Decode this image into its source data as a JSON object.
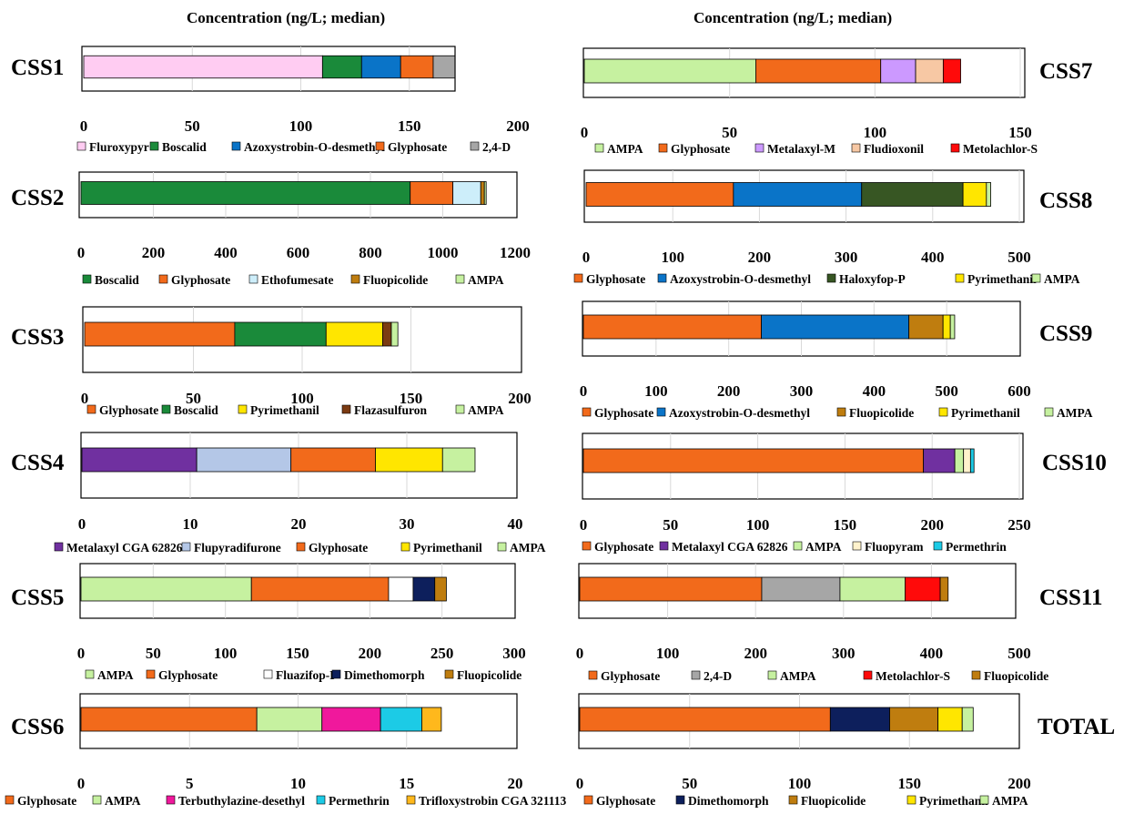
{
  "headers": {
    "left": "Concentration (ng/L; median)",
    "right": "Concentration (ng/L; median)"
  },
  "chart_data": [
    {
      "type": "bar",
      "orientation": "horizontal",
      "stacked": true,
      "title": "CSS1",
      "xlim": [
        0,
        200
      ],
      "ticks": [
        0,
        50,
        100,
        150,
        200
      ],
      "grid": true,
      "legend": "bottom",
      "series": [
        {
          "name": "Fluroxypyr",
          "value": 110,
          "color": "#ffccf2"
        },
        {
          "name": "Boscalid",
          "value": 18,
          "color": "#1a8a3a"
        },
        {
          "name": "Azoxystrobin-O-desmethyl",
          "value": 18,
          "color": "#0a74c8"
        },
        {
          "name": "Glyphosate",
          "value": 15,
          "color": "#f26a1b"
        },
        {
          "name": "2,4-D",
          "value": 10,
          "color": "#a6a6a6"
        }
      ]
    },
    {
      "type": "bar",
      "orientation": "horizontal",
      "stacked": true,
      "title": "CSS2",
      "xlim": [
        0,
        1200
      ],
      "ticks": [
        0,
        200,
        400,
        600,
        800,
        1000,
        1200
      ],
      "grid": true,
      "legend": "bottom",
      "series": [
        {
          "name": "Boscalid",
          "value": 910,
          "color": "#1a8a3a"
        },
        {
          "name": "Glyphosate",
          "value": 118,
          "color": "#f26a1b"
        },
        {
          "name": "Ethofumesate",
          "value": 77,
          "color": "#cdeefa"
        },
        {
          "name": "Fluopicolide",
          "value": 10,
          "color": "#bf7d0f"
        },
        {
          "name": "AMPA",
          "value": 5,
          "color": "#c6f1a0"
        }
      ]
    },
    {
      "type": "bar",
      "orientation": "horizontal",
      "stacked": true,
      "title": "CSS3",
      "xlim": [
        0,
        200
      ],
      "ticks": [
        0,
        50,
        100,
        150,
        200
      ],
      "grid": true,
      "legend": "bottom",
      "series": [
        {
          "name": "Glyphosate",
          "value": 69,
          "color": "#f26a1b"
        },
        {
          "name": "Boscalid",
          "value": 42,
          "color": "#1a8a3a"
        },
        {
          "name": "Pyrimethanil",
          "value": 26,
          "color": "#ffe600"
        },
        {
          "name": "Flazasulfuron",
          "value": 4,
          "color": "#7b3b12"
        },
        {
          "name": "AMPA",
          "value": 3,
          "color": "#c6f1a0"
        }
      ]
    },
    {
      "type": "bar",
      "orientation": "horizontal",
      "stacked": true,
      "title": "CSS4",
      "xlim": [
        0,
        40
      ],
      "ticks": [
        0,
        10,
        20,
        30,
        40
      ],
      "grid": true,
      "legend": "bottom",
      "series": [
        {
          "name": "Metalaxyl CGA 62826",
          "value": 10.6,
          "color": "#7030a0"
        },
        {
          "name": "Flupyradifurone",
          "value": 8.7,
          "color": "#b4c7e7"
        },
        {
          "name": "Glyphosate",
          "value": 7.8,
          "color": "#f26a1b"
        },
        {
          "name": "Pyrimethanil",
          "value": 6.2,
          "color": "#ffe600"
        },
        {
          "name": "AMPA",
          "value": 3.0,
          "color": "#c6f1a0"
        }
      ]
    },
    {
      "type": "bar",
      "orientation": "horizontal",
      "stacked": true,
      "title": "CSS5",
      "xlim": [
        0,
        300
      ],
      "ticks": [
        0,
        50,
        100,
        150,
        200,
        250,
        300
      ],
      "grid": true,
      "legend": "bottom",
      "series": [
        {
          "name": "AMPA",
          "value": 118,
          "color": "#c6f1a0"
        },
        {
          "name": "Glyphosate",
          "value": 95,
          "color": "#f26a1b"
        },
        {
          "name": "Fluazifop-P",
          "value": 17,
          "color": "#ffffff"
        },
        {
          "name": "Dimethomorph",
          "value": 15,
          "color": "#0d1f5c"
        },
        {
          "name": "Fluopicolide",
          "value": 8,
          "color": "#bf7d0f"
        }
      ]
    },
    {
      "type": "bar",
      "orientation": "horizontal",
      "stacked": true,
      "title": "CSS6",
      "xlim": [
        0,
        20
      ],
      "ticks": [
        0,
        5,
        10,
        15,
        20
      ],
      "grid": true,
      "legend": "bottom",
      "series": [
        {
          "name": "Glyphosate",
          "value": 8.1,
          "color": "#f26a1b"
        },
        {
          "name": "AMPA",
          "value": 3.0,
          "color": "#c6f1a0"
        },
        {
          "name": "Terbuthylazine-desethyl",
          "value": 2.7,
          "color": "#f0189c"
        },
        {
          "name": "Permethrin",
          "value": 1.9,
          "color": "#1ccbe6"
        },
        {
          "name": "Trifloxystrobin CGA 321113",
          "value": 0.9,
          "color": "#ffb81c"
        }
      ]
    },
    {
      "type": "bar",
      "orientation": "horizontal",
      "stacked": true,
      "title": "CSS7",
      "xlim": [
        0,
        150
      ],
      "ticks": [
        0,
        50,
        100,
        150
      ],
      "grid": true,
      "legend": "bottom",
      "series": [
        {
          "name": "AMPA",
          "value": 59,
          "color": "#c6f1a0"
        },
        {
          "name": "Glyphosate",
          "value": 43,
          "color": "#f26a1b"
        },
        {
          "name": "Metalaxyl-M",
          "value": 12,
          "color": "#cc99ff"
        },
        {
          "name": "Fludioxonil",
          "value": 9.5,
          "color": "#f7c8a4"
        },
        {
          "name": "Metolachlor-S",
          "value": 6,
          "color": "#ff0a0a"
        }
      ]
    },
    {
      "type": "bar",
      "orientation": "horizontal",
      "stacked": true,
      "title": "CSS8",
      "xlim": [
        0,
        500
      ],
      "ticks": [
        0,
        100,
        200,
        300,
        400,
        500
      ],
      "grid": true,
      "legend": "bottom",
      "series": [
        {
          "name": "Glyphosate",
          "value": 170,
          "color": "#f26a1b"
        },
        {
          "name": "Azoxystrobin-O-desmethyl",
          "value": 148,
          "color": "#0a74c8"
        },
        {
          "name": "Haloxyfop-P",
          "value": 117,
          "color": "#375623"
        },
        {
          "name": "Pyrimethanil",
          "value": 27,
          "color": "#ffe600"
        },
        {
          "name": "AMPA",
          "value": 5,
          "color": "#c6f1a0"
        }
      ]
    },
    {
      "type": "bar",
      "orientation": "horizontal",
      "stacked": true,
      "title": "CSS9",
      "xlim": [
        0,
        600
      ],
      "ticks": [
        0,
        100,
        200,
        300,
        400,
        500,
        600
      ],
      "grid": true,
      "legend": "bottom",
      "series": [
        {
          "name": "Glyphosate",
          "value": 245,
          "color": "#f26a1b"
        },
        {
          "name": "Azoxystrobin-O-desmethyl",
          "value": 203,
          "color": "#0a74c8"
        },
        {
          "name": "Fluopicolide",
          "value": 47,
          "color": "#bf7d0f"
        },
        {
          "name": "Pyrimethanil",
          "value": 10,
          "color": "#ffe600"
        },
        {
          "name": "AMPA",
          "value": 6,
          "color": "#c6f1a0"
        }
      ]
    },
    {
      "type": "bar",
      "orientation": "horizontal",
      "stacked": true,
      "title": "CSS10",
      "xlim": [
        0,
        250
      ],
      "ticks": [
        0,
        50,
        100,
        150,
        200,
        250
      ],
      "grid": true,
      "legend": "bottom",
      "series": [
        {
          "name": "Glyphosate",
          "value": 195,
          "color": "#f26a1b"
        },
        {
          "name": "Metalaxyl CGA 62826",
          "value": 18,
          "color": "#7030a0"
        },
        {
          "name": "AMPA",
          "value": 5,
          "color": "#c6f1a0"
        },
        {
          "name": "Fluopyram",
          "value": 4,
          "color": "#fff2cc"
        },
        {
          "name": "Permethrin",
          "value": 2,
          "color": "#1ccbe6"
        }
      ]
    },
    {
      "type": "bar",
      "orientation": "horizontal",
      "stacked": true,
      "title": "CSS11",
      "xlim": [
        0,
        500
      ],
      "ticks": [
        0,
        100,
        200,
        300,
        400,
        500
      ],
      "grid": true,
      "legend": "bottom",
      "series": [
        {
          "name": "Glyphosate",
          "value": 207,
          "color": "#f26a1b"
        },
        {
          "name": "2,4-D",
          "value": 89,
          "color": "#a6a6a6"
        },
        {
          "name": "AMPA",
          "value": 74,
          "color": "#c6f1a0"
        },
        {
          "name": "Metolachlor-S",
          "value": 40,
          "color": "#ff0a0a"
        },
        {
          "name": "Fluopicolide",
          "value": 9,
          "color": "#bf7d0f"
        }
      ]
    },
    {
      "type": "bar",
      "orientation": "horizontal",
      "stacked": true,
      "title": "TOTAL",
      "xlim": [
        0,
        200
      ],
      "ticks": [
        0,
        50,
        100,
        150,
        200
      ],
      "grid": true,
      "legend": "bottom",
      "series": [
        {
          "name": "Glyphosate",
          "value": 114,
          "color": "#f26a1b"
        },
        {
          "name": "Dimethomorph",
          "value": 27,
          "color": "#0d1f5c"
        },
        {
          "name": "Fluopicolide",
          "value": 22,
          "color": "#bf7d0f"
        },
        {
          "name": "Pyrimethanil",
          "value": 11,
          "color": "#ffe600"
        },
        {
          "name": "AMPA",
          "value": 5,
          "color": "#c6f1a0"
        }
      ]
    }
  ]
}
